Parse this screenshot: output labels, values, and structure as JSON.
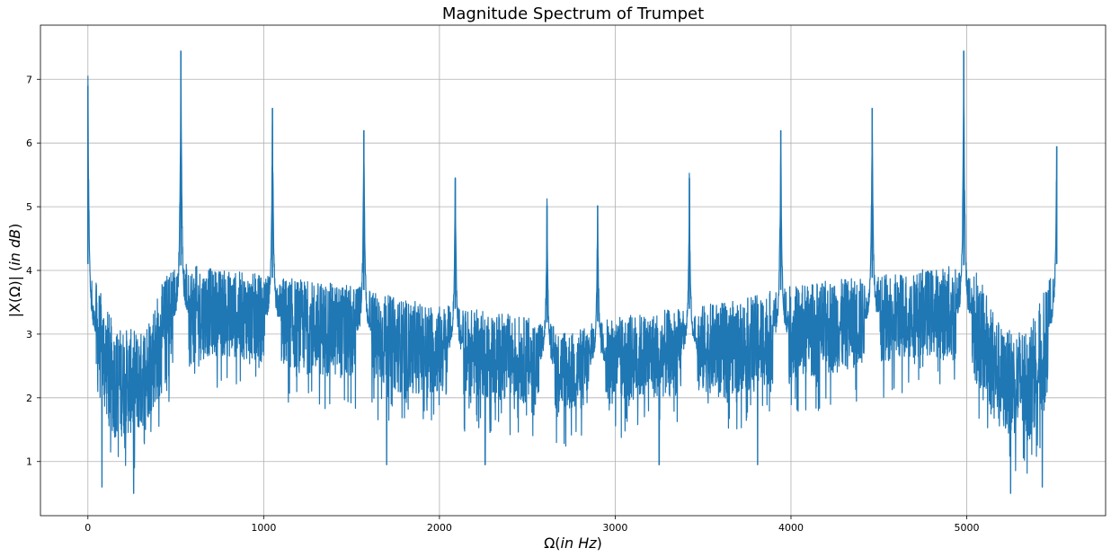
{
  "chart_data": {
    "type": "line",
    "title": "Magnitude Spectrum of Trumpet",
    "xlabel_main": "Ω(",
    "xlabel_unit": "in Hz",
    "xlabel_close": ")",
    "ylabel_main": "|X(Ω)| (",
    "ylabel_unit": "in dB",
    "ylabel_close": ")",
    "xlim": [
      -270,
      5790
    ],
    "ylim": [
      0.15,
      7.85
    ],
    "x_ticks": [
      0,
      1000,
      2000,
      3000,
      4000,
      5000
    ],
    "y_ticks": [
      1,
      2,
      3,
      4,
      5,
      6,
      7
    ],
    "grid": true,
    "line_color": "#1f77b4",
    "series": [
      {
        "x_start": 0,
        "x_end": 5512,
        "peaks": [
          {
            "x": 0,
            "y": 6.9
          },
          {
            "x": 529,
            "y": 7.45
          },
          {
            "x": 1050,
            "y": 6.55
          },
          {
            "x": 1570,
            "y": 6.2
          },
          {
            "x": 2090,
            "y": 5.45
          },
          {
            "x": 2612,
            "y": 5.02
          },
          {
            "x": 2900,
            "y": 5.02
          },
          {
            "x": 3422,
            "y": 5.45
          },
          {
            "x": 3942,
            "y": 6.2
          },
          {
            "x": 4462,
            "y": 6.55
          },
          {
            "x": 4983,
            "y": 7.45
          },
          {
            "x": 5512,
            "y": 5.95
          }
        ],
        "floor_profile": [
          {
            "x": 0,
            "upper": 4.1,
            "lower": 2.5
          },
          {
            "x": 150,
            "upper": 3.1,
            "lower": 1.4
          },
          {
            "x": 300,
            "upper": 3.0,
            "lower": 1.5
          },
          {
            "x": 480,
            "upper": 4.1,
            "lower": 2.4
          },
          {
            "x": 700,
            "upper": 4.0,
            "lower": 2.7
          },
          {
            "x": 1000,
            "upper": 3.9,
            "lower": 2.6
          },
          {
            "x": 1300,
            "upper": 3.8,
            "lower": 2.4
          },
          {
            "x": 1560,
            "upper": 3.7,
            "lower": 2.3
          },
          {
            "x": 1800,
            "upper": 3.5,
            "lower": 2.1
          },
          {
            "x": 2080,
            "upper": 3.4,
            "lower": 2.1
          },
          {
            "x": 2350,
            "upper": 3.3,
            "lower": 2.0
          },
          {
            "x": 2600,
            "upper": 3.2,
            "lower": 1.9
          },
          {
            "x": 2756,
            "upper": 3.0,
            "lower": 1.8
          },
          {
            "x": 2900,
            "upper": 3.2,
            "lower": 1.9
          },
          {
            "x": 3160,
            "upper": 3.3,
            "lower": 2.0
          },
          {
            "x": 3430,
            "upper": 3.4,
            "lower": 2.1
          },
          {
            "x": 3700,
            "upper": 3.5,
            "lower": 2.1
          },
          {
            "x": 3950,
            "upper": 3.7,
            "lower": 2.3
          },
          {
            "x": 4210,
            "upper": 3.8,
            "lower": 2.4
          },
          {
            "x": 4510,
            "upper": 3.9,
            "lower": 2.6
          },
          {
            "x": 4810,
            "upper": 4.0,
            "lower": 2.7
          },
          {
            "x": 5030,
            "upper": 4.1,
            "lower": 2.4
          },
          {
            "x": 5210,
            "upper": 3.0,
            "lower": 1.5
          },
          {
            "x": 5360,
            "upper": 3.1,
            "lower": 1.4
          },
          {
            "x": 5512,
            "upper": 4.1,
            "lower": 2.5
          }
        ],
        "min_dips": [
          {
            "x": 80,
            "y": 0.6
          },
          {
            "x": 260,
            "y": 0.5
          },
          {
            "x": 1700,
            "y": 0.95
          },
          {
            "x": 2260,
            "y": 0.95
          },
          {
            "x": 3250,
            "y": 0.95
          },
          {
            "x": 3810,
            "y": 0.95
          },
          {
            "x": 5250,
            "y": 0.5
          },
          {
            "x": 5430,
            "y": 0.6
          }
        ]
      }
    ]
  }
}
